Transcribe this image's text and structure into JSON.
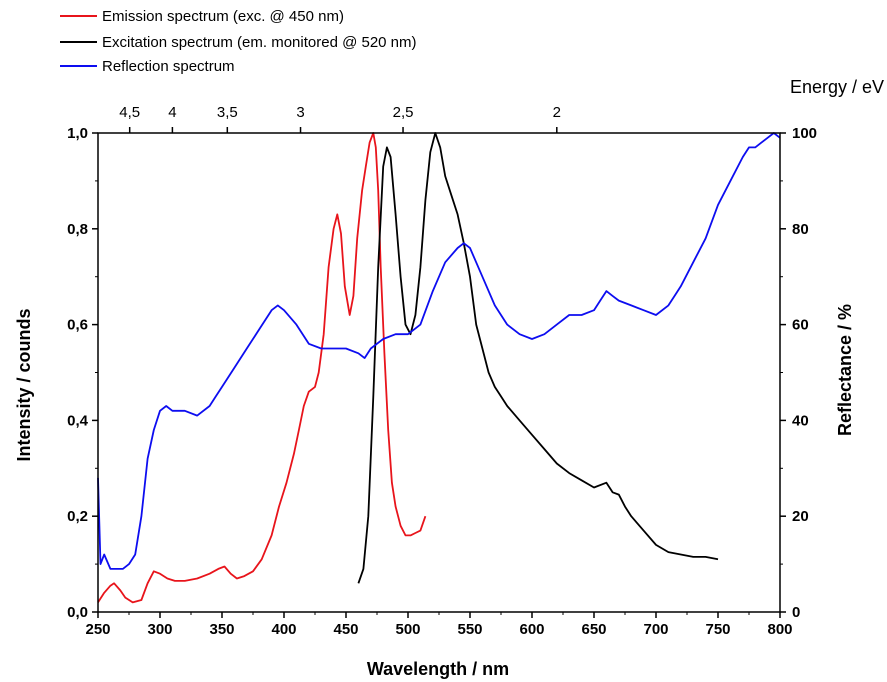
{
  "chart_data": {
    "type": "line",
    "title": "",
    "xlabel": "Wavelength / nm",
    "ylabel": "Intensity / counds",
    "y2label": "Reflectance / %",
    "x2label": "Energy / eV",
    "xlim": [
      250,
      800
    ],
    "ylim": [
      0,
      1.0
    ],
    "y2lim": [
      0,
      100
    ],
    "x_ticks": [
      250,
      300,
      350,
      400,
      450,
      500,
      550,
      600,
      650,
      700,
      750,
      800
    ],
    "x_tick_labels": [
      "250",
      "300",
      "350",
      "400",
      "450",
      "500",
      "550",
      "600",
      "650",
      "700",
      "750",
      "800"
    ],
    "y_ticks": [
      0,
      0.2,
      0.4,
      0.6,
      0.8,
      1.0
    ],
    "y_tick_labels": [
      "0,0",
      "0,2",
      "0,4",
      "0,6",
      "0,8",
      "1,0"
    ],
    "y2_ticks": [
      0,
      20,
      40,
      60,
      80,
      100
    ],
    "y2_tick_labels": [
      "0",
      "20",
      "40",
      "60",
      "80",
      "100"
    ],
    "x2_ticks": [
      4.5,
      4,
      3.5,
      3,
      2.5,
      2
    ],
    "x2_tick_labels": [
      "4,5",
      "4",
      "3,5",
      "3",
      "2,5",
      "2"
    ],
    "grid": false,
    "legend_position": "top-left-outside",
    "series": [
      {
        "name": "Emission spectrum (exc. @ 450 nm)",
        "color": "#e8141b",
        "axis": "left",
        "x": [
          250,
          255,
          260,
          263,
          268,
          272,
          278,
          285,
          290,
          295,
          300,
          306,
          312,
          320,
          330,
          340,
          347,
          352,
          357,
          362,
          368,
          375,
          382,
          390,
          396,
          402,
          408,
          412,
          416,
          420,
          425,
          428,
          432,
          436,
          440,
          443,
          446,
          449,
          453,
          456,
          459,
          463,
          466,
          469,
          472,
          474,
          476,
          478,
          481,
          484,
          487,
          490,
          494,
          498,
          502,
          506,
          510,
          514
        ],
        "y": [
          0.02,
          0.04,
          0.055,
          0.06,
          0.045,
          0.03,
          0.02,
          0.025,
          0.06,
          0.085,
          0.08,
          0.07,
          0.065,
          0.065,
          0.07,
          0.08,
          0.09,
          0.095,
          0.08,
          0.07,
          0.075,
          0.085,
          0.11,
          0.16,
          0.22,
          0.27,
          0.33,
          0.38,
          0.43,
          0.46,
          0.47,
          0.5,
          0.58,
          0.72,
          0.8,
          0.83,
          0.79,
          0.68,
          0.62,
          0.66,
          0.78,
          0.88,
          0.93,
          0.98,
          1.0,
          0.97,
          0.88,
          0.72,
          0.54,
          0.38,
          0.27,
          0.22,
          0.18,
          0.16,
          0.16,
          0.165,
          0.17,
          0.2
        ]
      },
      {
        "name": "Excitation spectrum (em. monitored @ 520 nm)",
        "color": "#000000",
        "axis": "left",
        "x": [
          460,
          464,
          468,
          472,
          476,
          480,
          483,
          486,
          490,
          494,
          498,
          502,
          506,
          510,
          514,
          518,
          522,
          526,
          530,
          535,
          540,
          545,
          550,
          555,
          560,
          565,
          570,
          575,
          580,
          590,
          600,
          610,
          620,
          630,
          640,
          650,
          660,
          665,
          670,
          675,
          680,
          690,
          700,
          710,
          720,
          730,
          740,
          750
        ],
        "y": [
          0.06,
          0.09,
          0.2,
          0.45,
          0.72,
          0.93,
          0.97,
          0.95,
          0.83,
          0.7,
          0.6,
          0.58,
          0.62,
          0.72,
          0.86,
          0.96,
          1.0,
          0.97,
          0.91,
          0.87,
          0.83,
          0.77,
          0.7,
          0.6,
          0.55,
          0.5,
          0.47,
          0.45,
          0.43,
          0.4,
          0.37,
          0.34,
          0.31,
          0.29,
          0.275,
          0.26,
          0.27,
          0.25,
          0.245,
          0.22,
          0.2,
          0.17,
          0.14,
          0.125,
          0.12,
          0.115,
          0.115,
          0.11
        ]
      },
      {
        "name": "Reflection spectrum",
        "color": "#0d0df0",
        "axis": "right",
        "x": [
          250,
          252,
          255,
          260,
          265,
          270,
          275,
          280,
          285,
          290,
          295,
          300,
          305,
          310,
          320,
          330,
          340,
          345,
          350,
          360,
          370,
          380,
          390,
          395,
          400,
          410,
          420,
          430,
          440,
          450,
          460,
          465,
          470,
          480,
          490,
          495,
          500,
          510,
          520,
          530,
          540,
          545,
          550,
          560,
          570,
          580,
          590,
          600,
          610,
          620,
          630,
          640,
          650,
          655,
          660,
          665,
          670,
          680,
          690,
          700,
          710,
          715,
          720,
          730,
          740,
          750,
          760,
          770,
          775,
          780,
          785,
          790,
          795,
          800
        ],
        "y": [
          28,
          10,
          12,
          9,
          9,
          9,
          10,
          12,
          20,
          32,
          38,
          42,
          43,
          42,
          42,
          41,
          43,
          45,
          47,
          51,
          55,
          59,
          63,
          64,
          63,
          60,
          56,
          55,
          55,
          55,
          54,
          53,
          55,
          57,
          58,
          58,
          58,
          60,
          67,
          73,
          76,
          77,
          76,
          70,
          64,
          60,
          58,
          57,
          58,
          60,
          62,
          62,
          63,
          65,
          67,
          66,
          65,
          64,
          63,
          62,
          64,
          66,
          68,
          73,
          78,
          85,
          90,
          95,
          97,
          97,
          98,
          99,
          100,
          99
        ]
      }
    ]
  }
}
